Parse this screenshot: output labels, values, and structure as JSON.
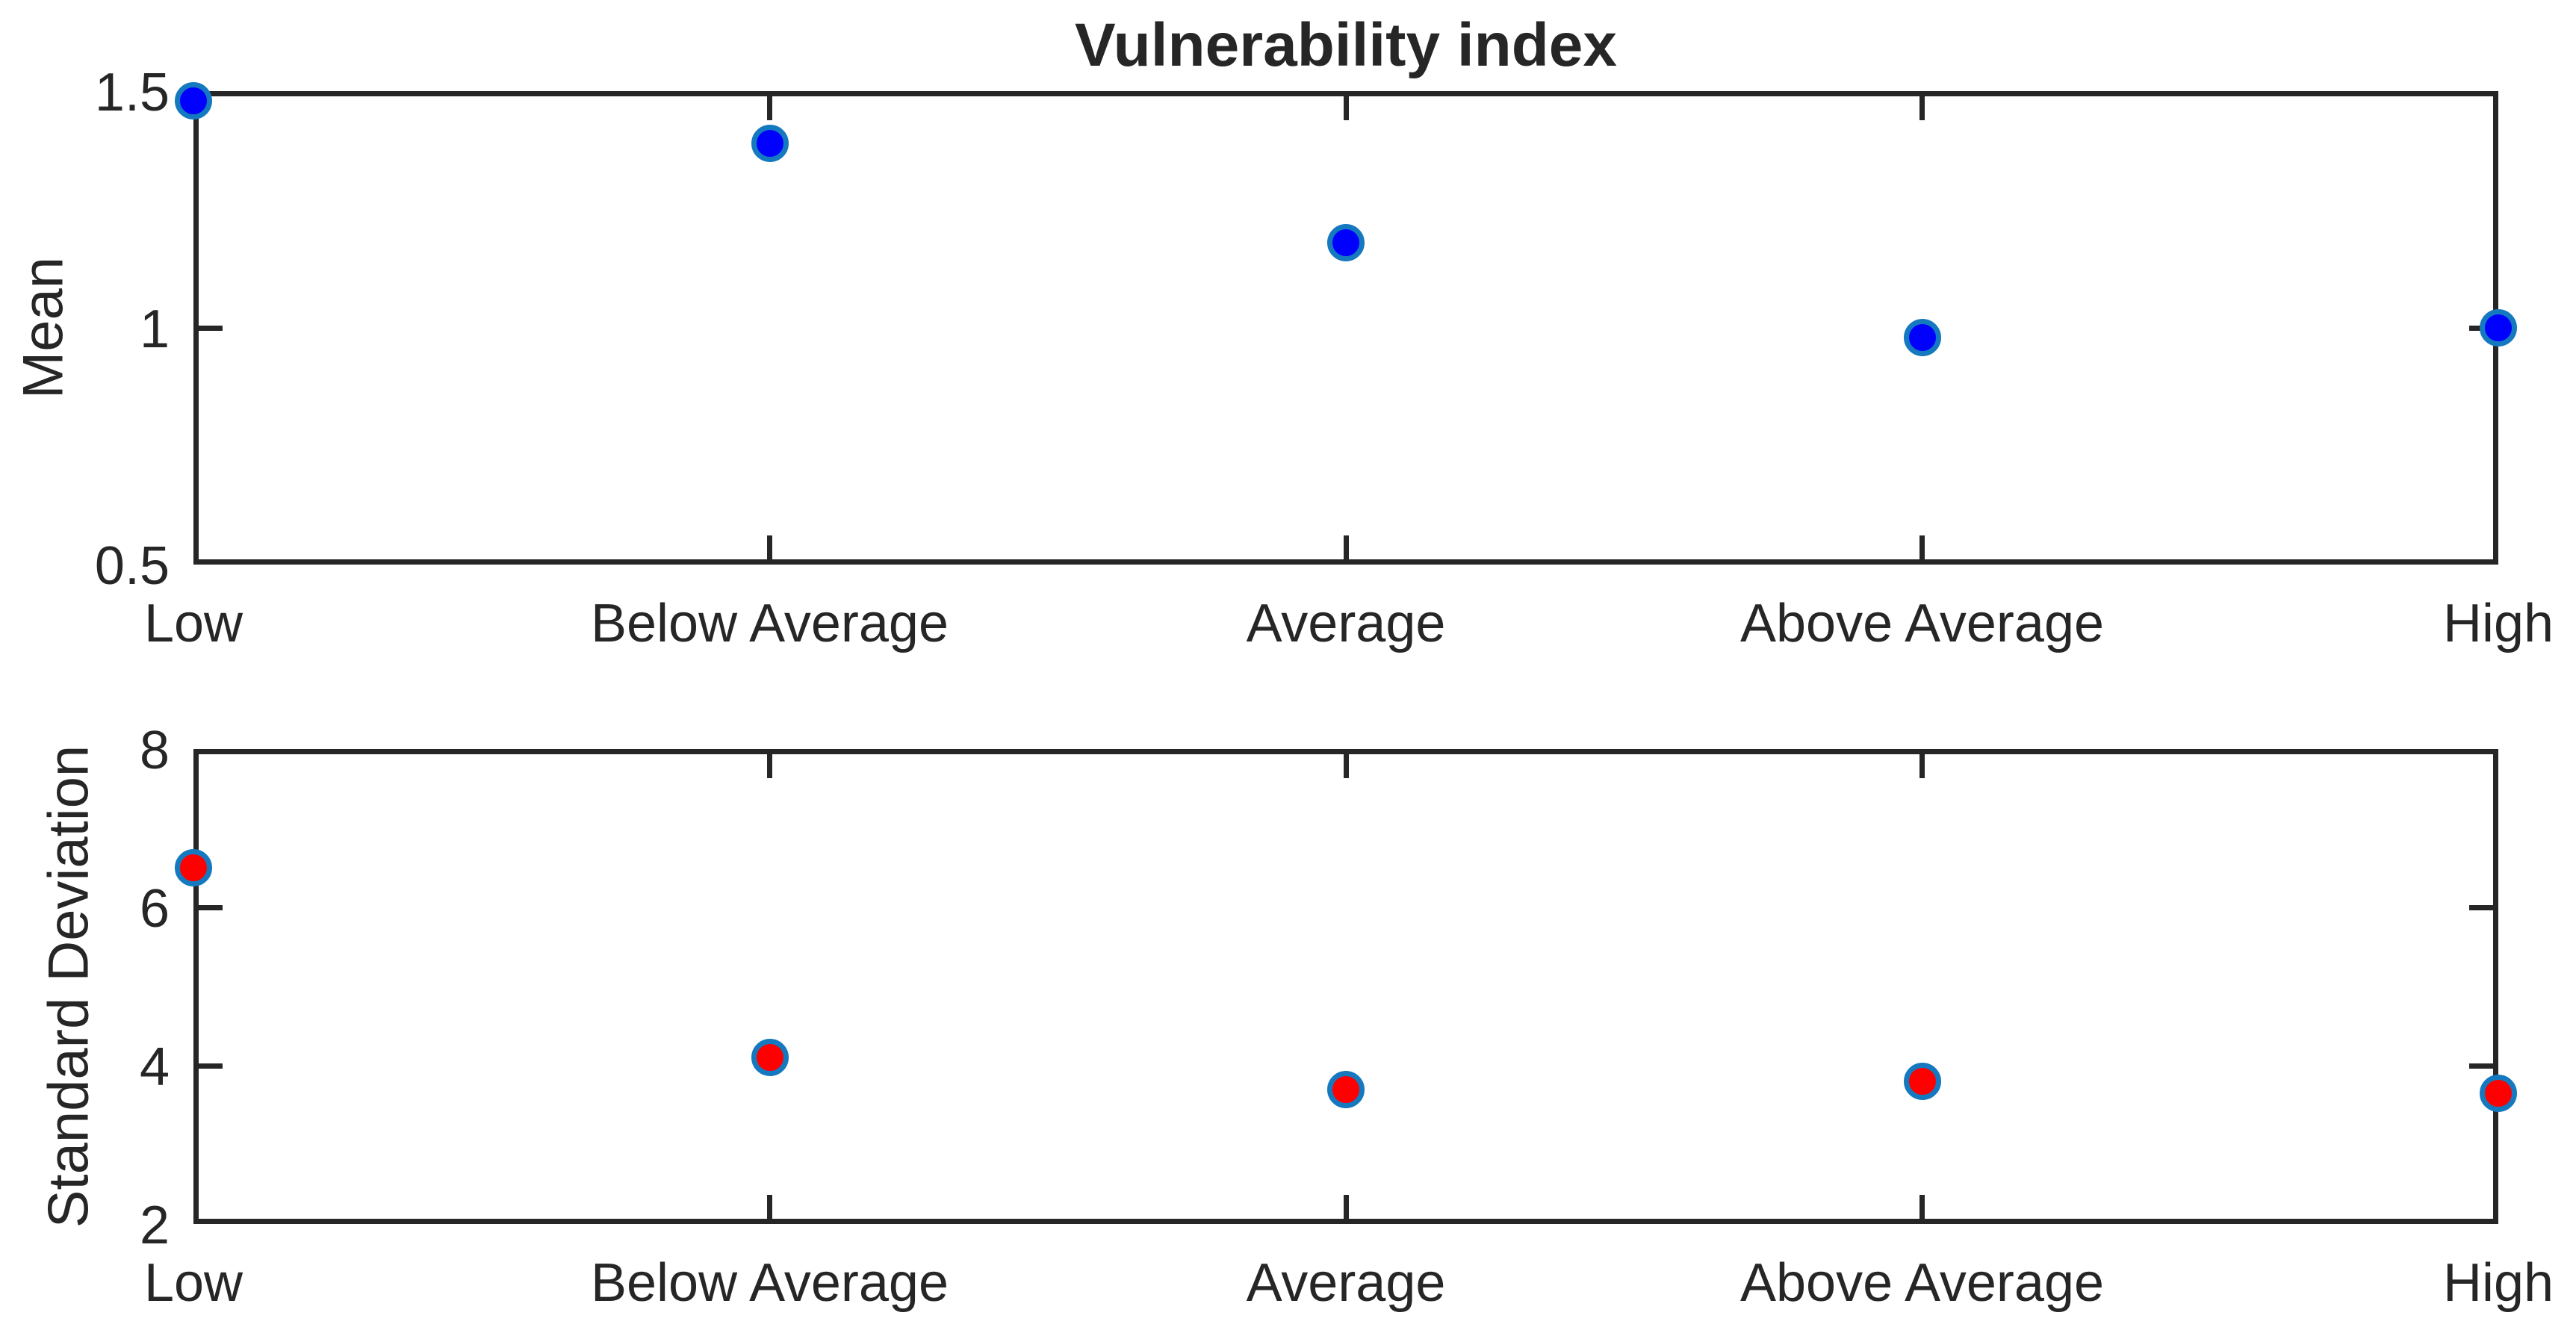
{
  "chart_data": {
    "type": "scatter",
    "title": "Vulnerability index",
    "categories": [
      "Low",
      "Below Average",
      "Average",
      "Above Average",
      "High"
    ],
    "subplots": [
      {
        "ylabel": "Mean",
        "ylim": [
          0.5,
          1.5
        ],
        "yticks": [
          0.5,
          1,
          1.5
        ],
        "ytick_labels": [
          "0.5",
          "1",
          "1.5"
        ],
        "grid": false,
        "series": [
          {
            "name": "Mean",
            "marker": "circle",
            "fill": "#0000ff",
            "edge": "#1579bf",
            "values": [
              1.48,
              1.39,
              1.18,
              0.98,
              1.0
            ]
          }
        ]
      },
      {
        "ylabel": "Standard Deviation",
        "ylim": [
          2,
          8
        ],
        "yticks": [
          2,
          4,
          6,
          8
        ],
        "ytick_labels": [
          "2",
          "4",
          "6",
          "8"
        ],
        "grid": false,
        "series": [
          {
            "name": "Standard Deviation",
            "marker": "circle",
            "fill": "#ff0000",
            "edge": "#1579bf",
            "values": [
              6.5,
              4.1,
              3.7,
              3.8,
              3.65
            ]
          }
        ]
      }
    ],
    "legend": null,
    "axis_color": "#262626",
    "background": "#ffffff"
  }
}
